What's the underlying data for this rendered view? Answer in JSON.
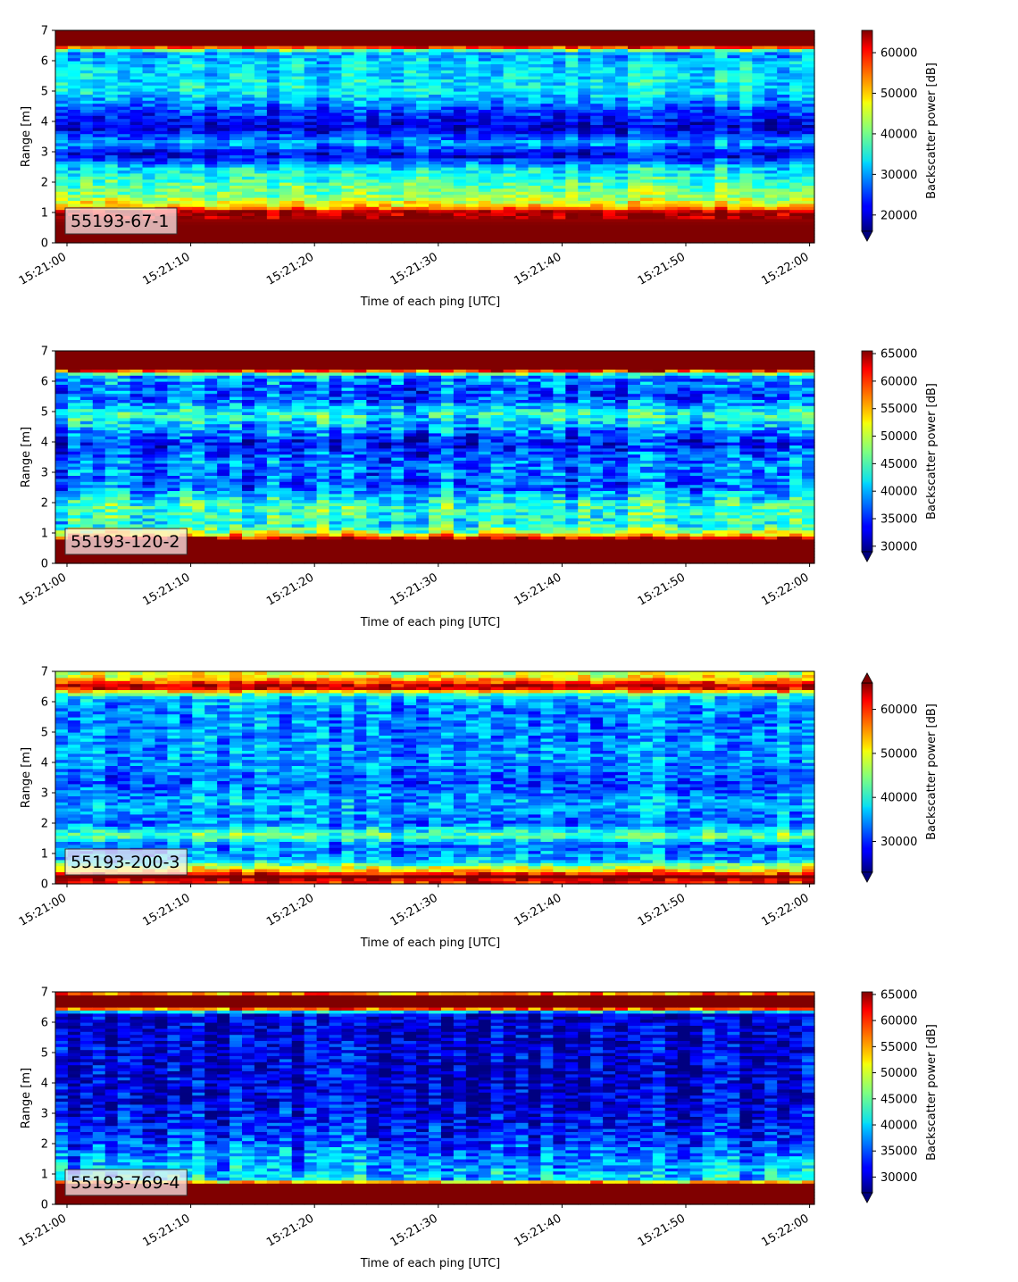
{
  "chart_data": [
    {
      "type": "heatmap",
      "label": "55193-67-1",
      "xlabel": "Time of each ping [UTC]",
      "ylabel": "Range [m]",
      "colorbar_label": "Backscatter power [dB]",
      "colormap": "jet",
      "x_ticks": [
        "15:21:00",
        "15:21:10",
        "15:21:20",
        "15:21:30",
        "15:21:40",
        "15:21:50",
        "15:22:00"
      ],
      "y_ticks": [
        0,
        1,
        2,
        3,
        4,
        5,
        6,
        7
      ],
      "ylim": [
        0,
        7
      ],
      "colorbar_range": [
        16000,
        65500
      ],
      "colorbar_ticks": [
        20000,
        30000,
        40000,
        50000,
        60000
      ],
      "colorbar_extend": "min",
      "profile": [
        {
          "range": 0.2,
          "value": 65500
        },
        {
          "range": 0.6,
          "value": 65500
        },
        {
          "range": 1.05,
          "value": 63000
        },
        {
          "range": 1.2,
          "value": 50000
        },
        {
          "range": 1.5,
          "value": 42000
        },
        {
          "range": 2.0,
          "value": 38000
        },
        {
          "range": 2.5,
          "value": 33000
        },
        {
          "range": 2.9,
          "value": 20000
        },
        {
          "range": 3.3,
          "value": 31000
        },
        {
          "range": 3.8,
          "value": 20000
        },
        {
          "range": 4.3,
          "value": 25000
        },
        {
          "range": 5.0,
          "value": 34000
        },
        {
          "range": 5.8,
          "value": 33000
        },
        {
          "range": 6.3,
          "value": 30000
        },
        {
          "range": 6.5,
          "value": 65500
        },
        {
          "range": 7.0,
          "value": 65500
        }
      ]
    },
    {
      "type": "heatmap",
      "label": "55193-120-2",
      "xlabel": "Time of each ping [UTC]",
      "ylabel": "Range [m]",
      "colorbar_label": "Backscatter power [dB]",
      "colormap": "jet",
      "x_ticks": [
        "15:21:00",
        "15:21:10",
        "15:21:20",
        "15:21:30",
        "15:21:40",
        "15:21:50",
        "15:22:00"
      ],
      "y_ticks": [
        0,
        1,
        2,
        3,
        4,
        5,
        6,
        7
      ],
      "ylim": [
        0,
        7
      ],
      "colorbar_range": [
        29000,
        65500
      ],
      "colorbar_ticks": [
        30000,
        35000,
        40000,
        45000,
        50000,
        55000,
        60000,
        65000
      ],
      "colorbar_extend": "min",
      "profile": [
        {
          "range": 0.2,
          "value": 65500
        },
        {
          "range": 0.8,
          "value": 65500
        },
        {
          "range": 1.0,
          "value": 50000
        },
        {
          "range": 1.3,
          "value": 43000
        },
        {
          "range": 1.9,
          "value": 45000
        },
        {
          "range": 2.5,
          "value": 37000
        },
        {
          "range": 3.3,
          "value": 38000
        },
        {
          "range": 4.0,
          "value": 34000
        },
        {
          "range": 4.9,
          "value": 44000
        },
        {
          "range": 5.5,
          "value": 36000
        },
        {
          "range": 6.2,
          "value": 39000
        },
        {
          "range": 6.4,
          "value": 65500
        },
        {
          "range": 7.0,
          "value": 65500
        }
      ]
    },
    {
      "type": "heatmap",
      "label": "55193-200-3",
      "xlabel": "Time of each ping [UTC]",
      "ylabel": "Range [m]",
      "colorbar_label": "Backscatter power [dB]",
      "colormap": "jet",
      "x_ticks": [
        "15:21:00",
        "15:21:10",
        "15:21:20",
        "15:21:30",
        "15:21:40",
        "15:21:50",
        "15:22:00"
      ],
      "y_ticks": [
        0,
        1,
        2,
        3,
        4,
        5,
        6,
        7
      ],
      "ylim": [
        0,
        7
      ],
      "colorbar_range": [
        23000,
        66000
      ],
      "colorbar_ticks": [
        30000,
        40000,
        50000,
        60000
      ],
      "colorbar_extend": "both",
      "profile": [
        {
          "range": 0.05,
          "value": 60000
        },
        {
          "range": 0.25,
          "value": 66000
        },
        {
          "range": 0.45,
          "value": 52000
        },
        {
          "range": 0.8,
          "value": 36000
        },
        {
          "range": 1.3,
          "value": 33000
        },
        {
          "range": 1.6,
          "value": 44000
        },
        {
          "range": 2.0,
          "value": 33000
        },
        {
          "range": 2.6,
          "value": 36000
        },
        {
          "range": 3.3,
          "value": 32000
        },
        {
          "range": 4.2,
          "value": 35000
        },
        {
          "range": 5.0,
          "value": 34000
        },
        {
          "range": 5.8,
          "value": 34000
        },
        {
          "range": 6.2,
          "value": 38000
        },
        {
          "range": 6.5,
          "value": 66000
        },
        {
          "range": 6.8,
          "value": 50000
        },
        {
          "range": 7.0,
          "value": 47000
        }
      ]
    },
    {
      "type": "heatmap",
      "label": "55193-769-4",
      "xlabel": "Time of each ping [UTC]",
      "ylabel": "Range [m]",
      "colorbar_label": "Backscatter power [dB]",
      "colormap": "jet",
      "x_ticks": [
        "15:21:00",
        "15:21:10",
        "15:21:20",
        "15:21:30",
        "15:21:40",
        "15:21:50",
        "15:22:00"
      ],
      "y_ticks": [
        0,
        1,
        2,
        3,
        4,
        5,
        6,
        7
      ],
      "ylim": [
        0,
        7
      ],
      "colorbar_range": [
        27000,
        65500
      ],
      "colorbar_ticks": [
        30000,
        35000,
        40000,
        45000,
        50000,
        55000,
        60000,
        65000
      ],
      "colorbar_extend": "min",
      "profile": [
        {
          "range": 0.2,
          "value": 65500
        },
        {
          "range": 0.65,
          "value": 65500
        },
        {
          "range": 0.85,
          "value": 40000
        },
        {
          "range": 1.5,
          "value": 37000
        },
        {
          "range": 2.3,
          "value": 33000
        },
        {
          "range": 3.5,
          "value": 30000
        },
        {
          "range": 5.0,
          "value": 30000
        },
        {
          "range": 6.3,
          "value": 30000
        },
        {
          "range": 6.5,
          "value": 65500
        },
        {
          "range": 6.9,
          "value": 65500
        },
        {
          "range": 7.0,
          "value": 45000
        }
      ]
    }
  ]
}
